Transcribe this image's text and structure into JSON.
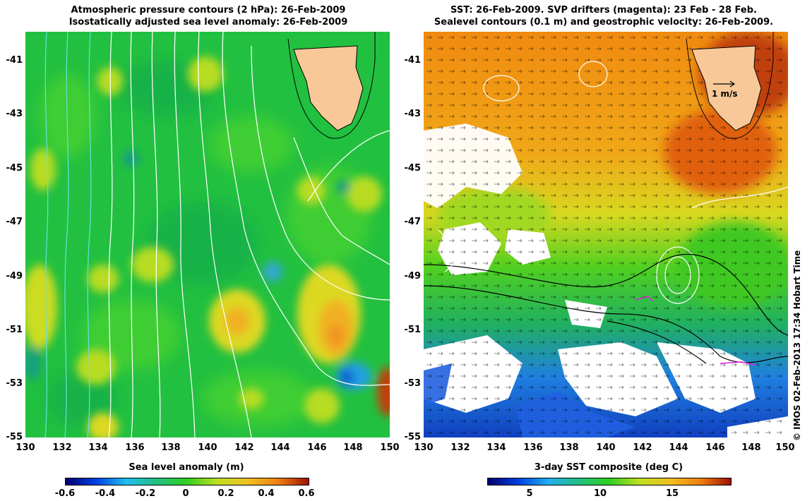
{
  "left_panel": {
    "title_line1": "Atmospheric pressure contours (2 hPa): 26-Feb-2009",
    "title_line2": "Isostatically adjusted sea level anomaly: 26-Feb-2009",
    "colorbar_label": "Sea level anomaly (m)",
    "colorbar_ticks": [
      "-0.6",
      "-0.4",
      "-0.2",
      "0",
      "0.2",
      "0.4",
      "0.6"
    ]
  },
  "right_panel": {
    "title_line1": "SST: 26-Feb-2009. SVP drifters (magenta): 23 Feb - 28 Feb.",
    "title_line2": "Sealevel contours (0.1 m) and geostrophic velocity: 26-Feb-2009.",
    "scale_label": "1 m/s",
    "colorbar_label": "3-day SST composite (deg C)",
    "colorbar_ticks": [
      "5",
      "10",
      "15"
    ]
  },
  "axes": {
    "lat_labels": [
      "-41",
      "-43",
      "-45",
      "-47",
      "-49",
      "-51",
      "-53",
      "-55"
    ],
    "lon_labels": [
      "130",
      "132",
      "134",
      "136",
      "138",
      "140",
      "142",
      "144",
      "146",
      "148",
      "150"
    ]
  },
  "credit": "© IMOS 02-Feb-2013 17:34 Hobart Time",
  "colors": {
    "land": "#f8c898",
    "sla_green": "#22c040",
    "sst_orange": "#f08a10",
    "contour_white": "#ffffff",
    "contour_cyan": "#66e0e0"
  }
}
